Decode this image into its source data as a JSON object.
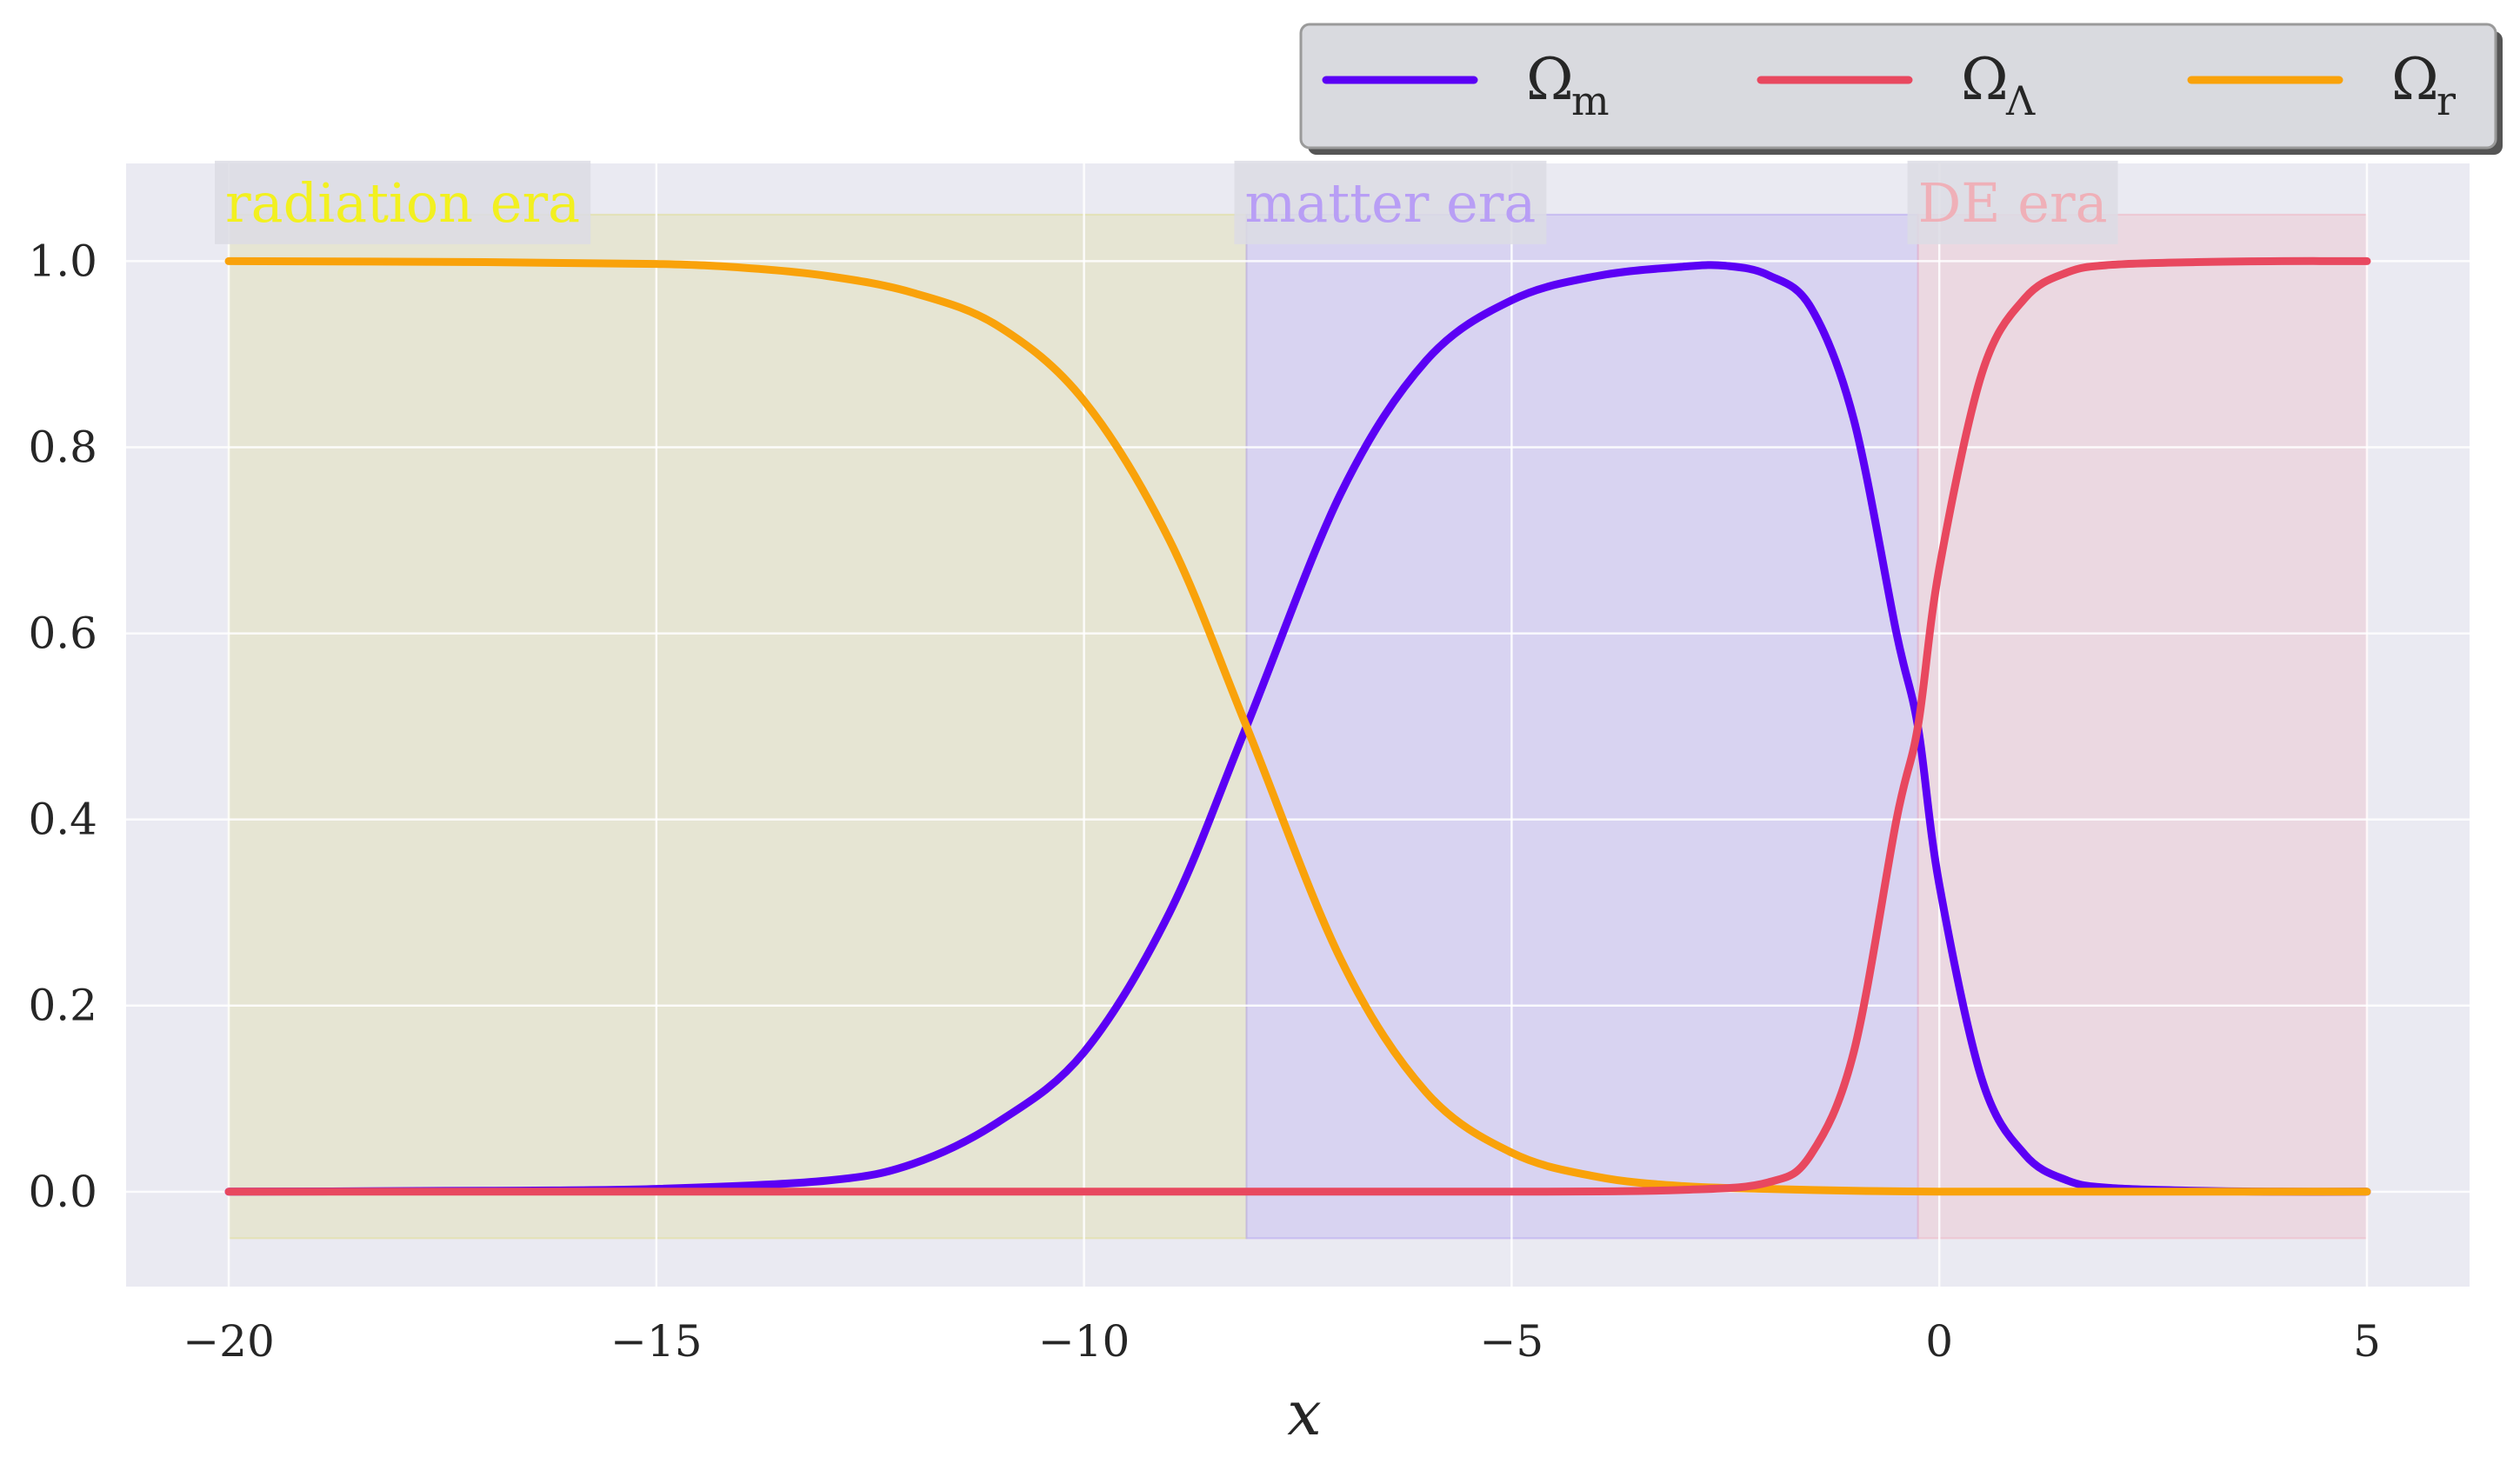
{
  "chart_data": {
    "type": "line",
    "xlabel": "x",
    "ylabel": "",
    "xlim": [
      -21.2,
      6.2
    ],
    "ylim": [
      -0.102,
      1.105
    ],
    "xticks": [
      -20,
      -15,
      -10,
      -5,
      0,
      5
    ],
    "xtick_labels": [
      "−20",
      "−15",
      "−10",
      "−5",
      "0",
      "5"
    ],
    "yticks": [
      0.0,
      0.2,
      0.4,
      0.6,
      0.8,
      1.0
    ],
    "ytick_labels": [
      "0.0",
      "0.2",
      "0.4",
      "0.6",
      "0.8",
      "1.0"
    ],
    "grid": true,
    "legend_position": "top-right, above plot",
    "legend": [
      {
        "base": "Ω",
        "sub": "m",
        "color": "#5b00f5"
      },
      {
        "base": "Ω",
        "sub": "Λ",
        "color": "#e8485f"
      },
      {
        "base": "Ω",
        "sub": "r",
        "color": "#f9a20a"
      }
    ],
    "regions": [
      {
        "label": "radiation era",
        "x0": -20,
        "x1": -8.1,
        "fill": "#e0dc9a",
        "text_color": "#f2f020"
      },
      {
        "label": "matter era",
        "x0": -8.1,
        "x1": -0.25,
        "fill": "#b8a8f0",
        "text_color": "#b89ef5"
      },
      {
        "label": "DE era",
        "x0": -0.25,
        "x1": 5,
        "fill": "#efb8c4",
        "text_color": "#efb0b8"
      }
    ],
    "series": [
      {
        "legend_index": 0,
        "color": "#5b00f5",
        "x": [
          -20,
          -17,
          -15,
          -13,
          -12,
          -11,
          -10,
          -9,
          -8.1,
          -7,
          -6,
          -5,
          -4,
          -3,
          -2.5,
          -2,
          -1.5,
          -1,
          -0.5,
          -0.25,
          0,
          0.5,
          1,
          1.5,
          2,
          3,
          4,
          5
        ],
        "y": [
          0.0,
          0.001,
          0.003,
          0.012,
          0.03,
          0.075,
          0.15,
          0.3,
          0.5,
          0.75,
          0.893,
          0.958,
          0.984,
          0.994,
          0.995,
          0.985,
          0.95,
          0.83,
          0.6,
          0.5,
          0.33,
          0.12,
          0.04,
          0.012,
          0.004,
          0.001,
          0.0,
          0.0
        ]
      },
      {
        "legend_index": 1,
        "color": "#e8485f",
        "x": [
          -20,
          -10,
          -5,
          -3,
          -2,
          -1.5,
          -1,
          -0.5,
          -0.25,
          0,
          0.5,
          1,
          1.5,
          2,
          3,
          4,
          5
        ],
        "y": [
          0.0,
          0.0,
          0.0,
          0.002,
          0.01,
          0.04,
          0.15,
          0.4,
          0.5,
          0.67,
          0.88,
          0.96,
          0.988,
          0.996,
          0.999,
          1.0,
          1.0
        ]
      },
      {
        "legend_index": 2,
        "color": "#f9a20a",
        "x": [
          -20,
          -17,
          -15,
          -14,
          -13,
          -12,
          -11,
          -10,
          -9,
          -8.1,
          -7,
          -6,
          -5,
          -4,
          -3,
          -2,
          -1,
          0,
          2,
          5
        ],
        "y": [
          1.0,
          0.999,
          0.997,
          0.993,
          0.984,
          0.966,
          0.93,
          0.85,
          0.7,
          0.5,
          0.25,
          0.107,
          0.042,
          0.016,
          0.006,
          0.003,
          0.001,
          0.0,
          0.0,
          0.0
        ]
      }
    ]
  }
}
